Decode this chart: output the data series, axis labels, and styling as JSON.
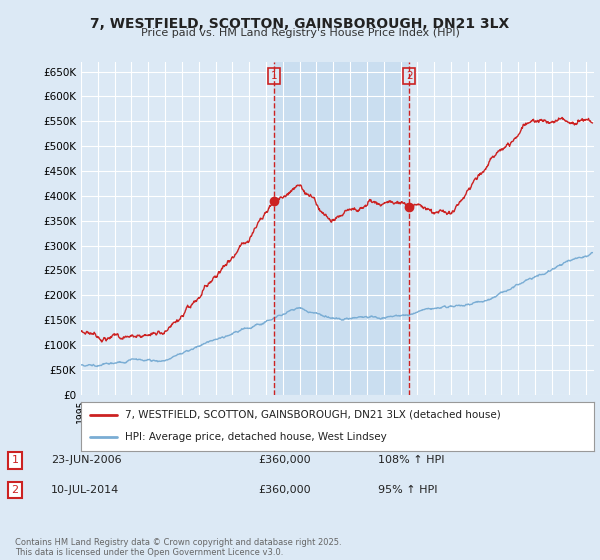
{
  "title": "7, WESTFIELD, SCOTTON, GAINSBOROUGH, DN21 3LX",
  "subtitle": "Price paid vs. HM Land Registry's House Price Index (HPI)",
  "background_color": "#dce9f5",
  "plot_bg_color": "#dce9f5",
  "shade_color": "#c8ddf0",
  "line1_color": "#cc2222",
  "line2_color": "#7aadd4",
  "vline_color": "#cc2222",
  "ylim": [
    0,
    670000
  ],
  "yticks": [
    0,
    50000,
    100000,
    150000,
    200000,
    250000,
    300000,
    350000,
    400000,
    450000,
    500000,
    550000,
    600000,
    650000
  ],
  "event1_x": 2006.475,
  "event2_x": 2014.525,
  "event1_label": "1",
  "event2_label": "2",
  "event1_date": "23-JUN-2006",
  "event1_price": "£360,000",
  "event1_hpi": "108% ↑ HPI",
  "event2_date": "10-JUL-2014",
  "event2_price": "£360,000",
  "event2_hpi": "95% ↑ HPI",
  "legend1_label": "7, WESTFIELD, SCOTTON, GAINSBOROUGH, DN21 3LX (detached house)",
  "legend2_label": "HPI: Average price, detached house, West Lindsey",
  "footer": "Contains HM Land Registry data © Crown copyright and database right 2025.\nThis data is licensed under the Open Government Licence v3.0.",
  "xmin": 1995,
  "xmax": 2025.5
}
